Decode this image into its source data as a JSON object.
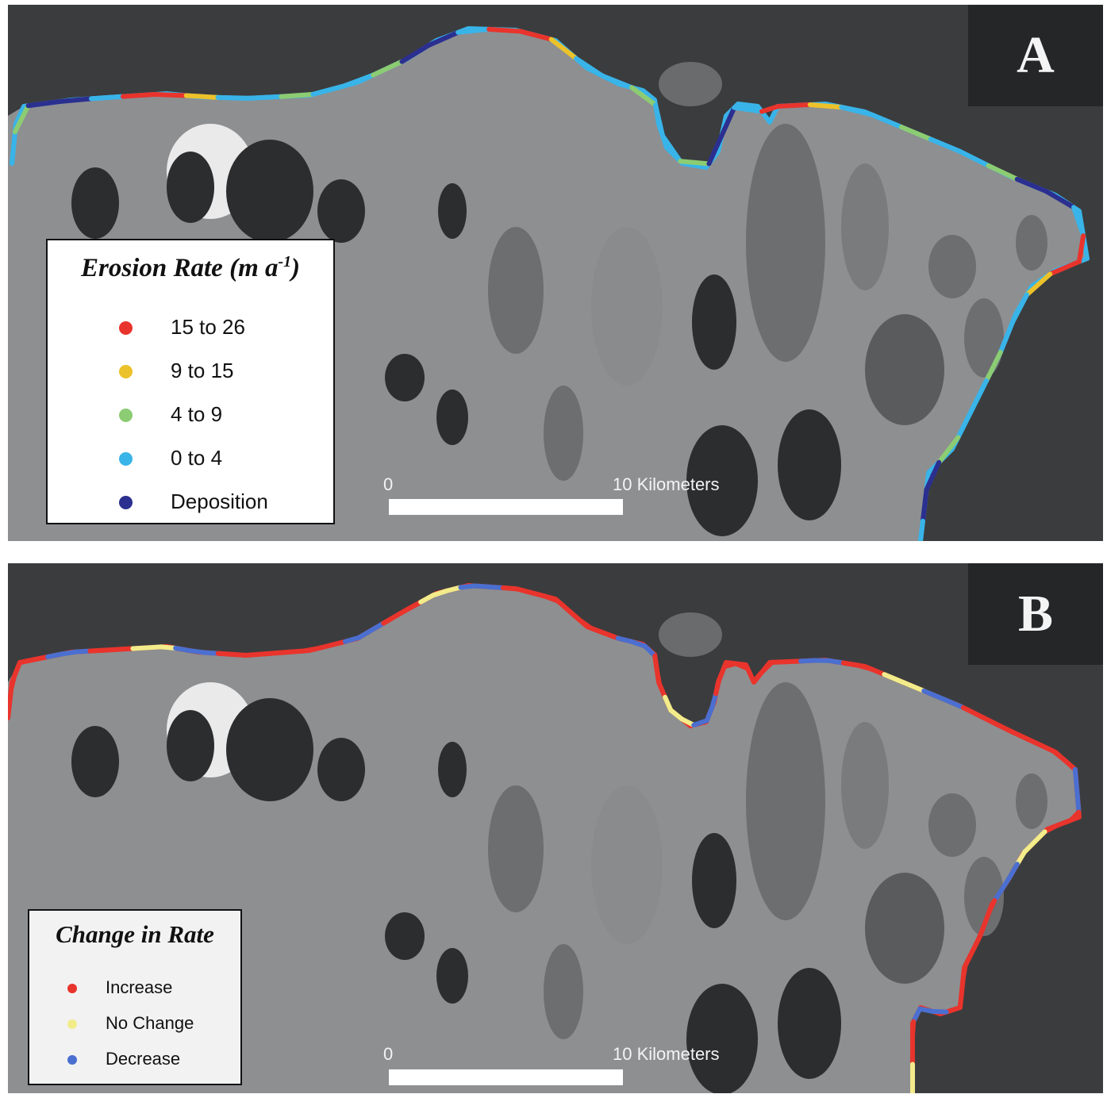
{
  "panels": [
    {
      "letter": "A",
      "legend": {
        "title": "Erosion Rate (m a",
        "title_sup": "-1",
        "title_close": ")",
        "items": [
          {
            "label": "15 to 26",
            "color": "#e8342c"
          },
          {
            "label": "9 to 15",
            "color": "#ecc22a"
          },
          {
            "label": "4 to 9",
            "color": "#8ccc72"
          },
          {
            "label": "0 to 4",
            "color": "#39b4e8"
          },
          {
            "label": "Deposition",
            "color": "#2b2f8f"
          }
        ]
      },
      "scale": {
        "start_label": "0",
        "end_label": "10 Kilometers"
      }
    },
    {
      "letter": "B",
      "legend": {
        "title": "Change in Rate",
        "items": [
          {
            "label": "Increase",
            "color": "#e8342c"
          },
          {
            "label": "No Change",
            "color": "#f2ec8a"
          },
          {
            "label": "Decrease",
            "color": "#4a6fd0"
          }
        ]
      },
      "scale": {
        "start_label": "0",
        "end_label": "10 Kilometers"
      }
    }
  ],
  "colors": {
    "sea": "#3b3c3e",
    "land": "#8e8f91",
    "lake": "#2c2d2f",
    "lake_light": "#6d6e70"
  }
}
